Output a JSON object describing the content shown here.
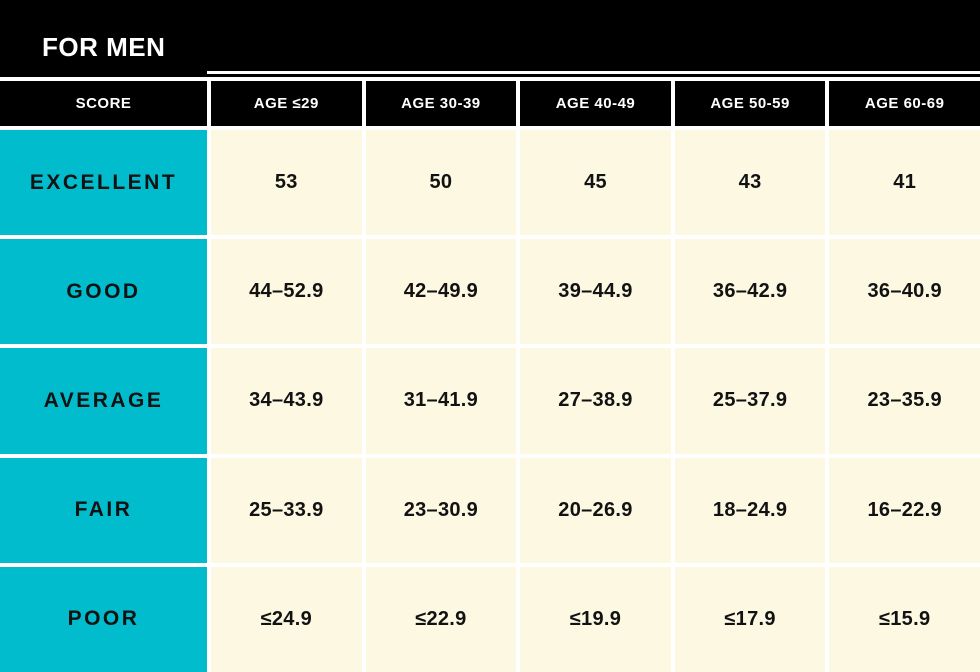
{
  "title": "FOR MEN",
  "colors": {
    "accent_cyan": "#00bccd",
    "cell_cream": "#fcf8e2",
    "band_black": "#000000",
    "divider_white": "#ffffff"
  },
  "chart_data": {
    "type": "table",
    "title": "FOR MEN",
    "columns": [
      "SCORE",
      "AGE ≤29",
      "AGE 30-39",
      "AGE 40-49",
      "AGE 50-59",
      "AGE 60-69"
    ],
    "rows": [
      {
        "label": "EXCELLENT",
        "values": [
          "53",
          "50",
          "45",
          "43",
          "41"
        ]
      },
      {
        "label": "GOOD",
        "values": [
          "44–52.9",
          "42–49.9",
          "39–44.9",
          "36–42.9",
          "36–40.9"
        ]
      },
      {
        "label": "AVERAGE",
        "values": [
          "34–43.9",
          "31–41.9",
          "27–38.9",
          "25–37.9",
          "23–35.9"
        ]
      },
      {
        "label": "FAIR",
        "values": [
          "25–33.9",
          "23–30.9",
          "20–26.9",
          "18–24.9",
          "16–22.9"
        ]
      },
      {
        "label": "POOR",
        "values": [
          "≤24.9",
          "≤22.9",
          "≤19.9",
          "≤17.9",
          "≤15.9"
        ]
      }
    ]
  }
}
